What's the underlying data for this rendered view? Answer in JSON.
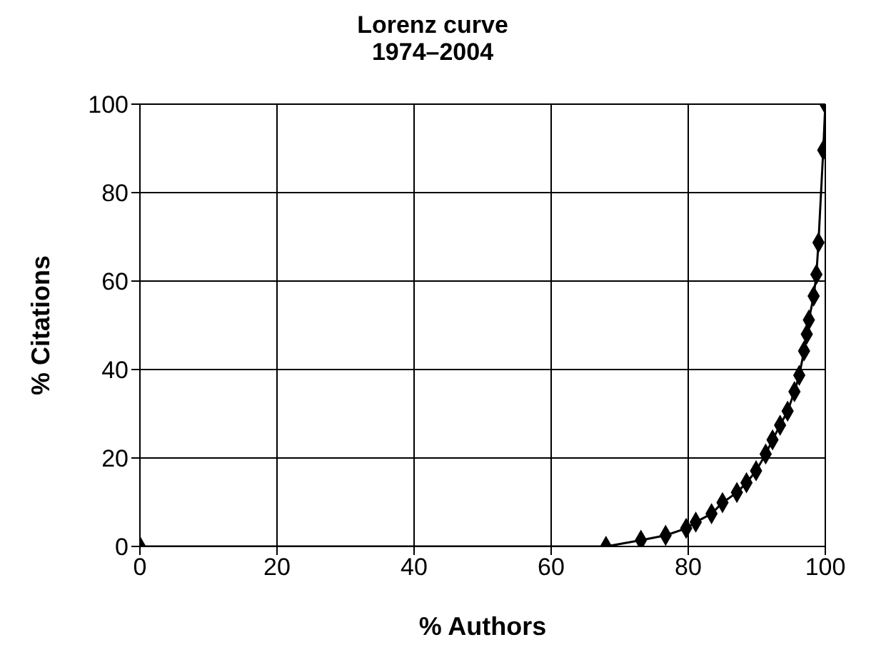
{
  "chart_data": {
    "type": "line",
    "title": "Lorenz curve",
    "subtitle": "1974–2004",
    "xlabel": "% Authors",
    "ylabel": "% Citations",
    "x": [
      0,
      68,
      73.1,
      76.7,
      79.7,
      81.1,
      83.4,
      85,
      87.1,
      88.5,
      89.9,
      91.3,
      92.3,
      93.4,
      94.5,
      95.5,
      96.2,
      96.9,
      97.3,
      97.6,
      98.3,
      98.7,
      99,
      99.7,
      100
    ],
    "series": [
      {
        "color": "#000000",
        "values": [
          0,
          0,
          1.4,
          2.5,
          4.1,
          5.5,
          7.4,
          9.9,
          12.2,
          14.4,
          17.1,
          20.9,
          24.1,
          27.4,
          30.6,
          35,
          38.7,
          44.2,
          48,
          51.2,
          56.6,
          61.5,
          68.7,
          89.6,
          100
        ]
      }
    ],
    "xlim": [
      0,
      100
    ],
    "xticks": [
      0,
      20,
      40,
      60,
      80,
      100
    ],
    "ylim": [
      0,
      100
    ],
    "yticks": [
      0,
      20,
      40,
      60,
      80,
      100
    ],
    "grid": true,
    "marker": "diamond",
    "line_style": "solid"
  }
}
